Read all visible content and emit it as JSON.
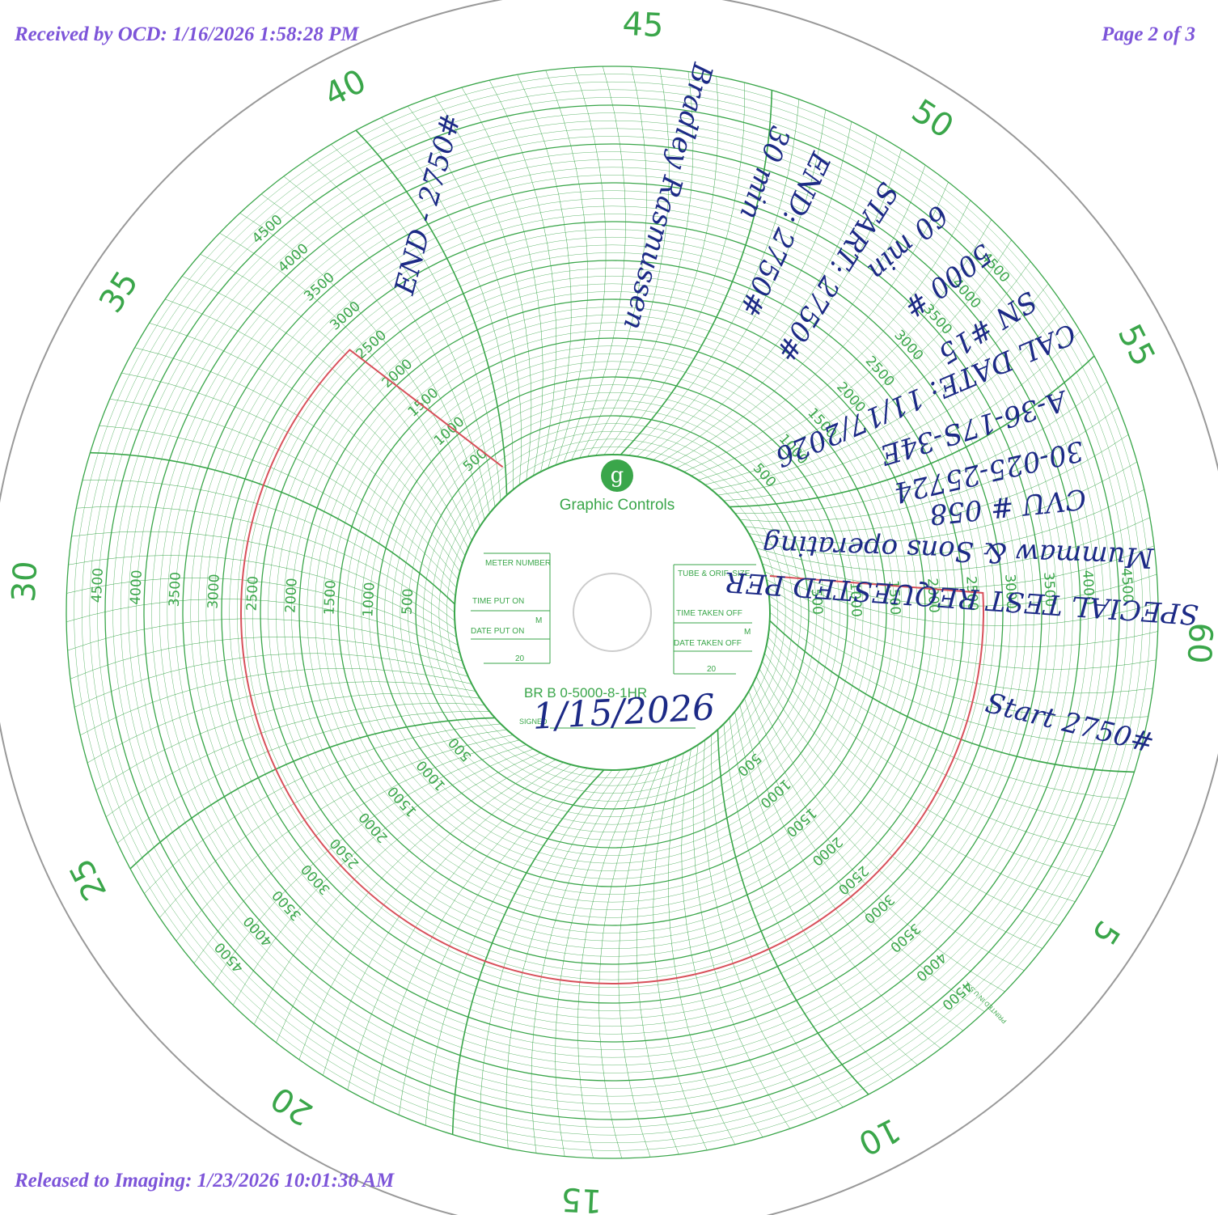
{
  "header": {
    "received": "Received by OCD: 1/16/2026 1:58:28 PM",
    "page": "Page 2 of 3",
    "released": "Released to Imaging: 1/23/2026 10:01:30 AM"
  },
  "chart": {
    "minute_labels": [
      5,
      10,
      15,
      20,
      25,
      30,
      35,
      40,
      45,
      50,
      55,
      60
    ],
    "pressure_labels": [
      500,
      1000,
      1500,
      2000,
      2500,
      3000,
      3500,
      4000,
      4500
    ],
    "brand": "Graphic Controls",
    "fields": [
      "METER NUMBER",
      "TIME PUT ON",
      "M",
      "DATE PUT ON",
      "20",
      "TUBE & ORIF. SIZE",
      "TIME TAKEN OFF",
      "M",
      "DATE TAKEN OFF",
      "20"
    ],
    "model": "BR B 0-5000-8-1HR",
    "signed": "SIGNED",
    "printed": "PRINTED IN U.S.A."
  },
  "annotations": {
    "special_test": "SPECIAL TEST REQUESTED PER",
    "operator": "Mummaw & Sons operating",
    "cvu": "CVU # 058",
    "api": "30-025-25724",
    "location": "A-36-17S-34E",
    "cal_date": "CAL DATE: 11/17/2026",
    "serial": "SN #15",
    "range": "5000 #",
    "duration": "60 min",
    "start_pressure": "START: 2750#",
    "end_pressure": "END: 2750#",
    "half": "30 min",
    "witness": "Bradley Rasmussen",
    "end_mark": "END - 2750#",
    "start_mark": "Start 2750#",
    "date_signed": "1/15/2026"
  }
}
